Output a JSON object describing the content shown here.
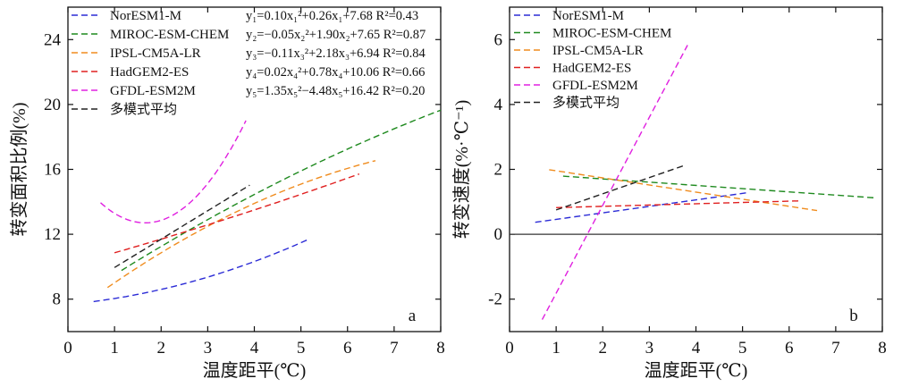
{
  "chart_data": [
    {
      "type": "line",
      "panel_label": "a",
      "xlabel": "温度距平(℃)",
      "ylabel": "转变面积比例(%)",
      "xlim": [
        0,
        8
      ],
      "ylim": [
        6,
        26
      ],
      "xticks": [
        "0",
        "1",
        "2",
        "3",
        "4",
        "5",
        "6",
        "7",
        "8"
      ],
      "yticks": [
        "8",
        "12",
        "16",
        "20",
        "24"
      ],
      "legend_position": "top-left",
      "series": [
        {
          "name": "NorESM1-M",
          "color": "#2b2bd6",
          "equation": "y₁=0.10x₁²+0.26x₁+7.68 R²=0.43",
          "coef": [
            0.1,
            0.26,
            7.68
          ],
          "x_range": [
            0.55,
            5.15
          ]
        },
        {
          "name": "MIROC-ESM-CHEM",
          "color": "#1f8a1f",
          "equation": "y₂=−0.05x₂²+1.90x₂+7.65 R²=0.87",
          "coef": [
            -0.05,
            1.9,
            7.65
          ],
          "x_range": [
            1.15,
            8.0
          ]
        },
        {
          "name": "IPSL-CM5A-LR",
          "color": "#f08c1e",
          "equation": "y₃=−0.11x₃²+2.18x₃+6.94 R²=0.84",
          "coef": [
            -0.11,
            2.18,
            6.94
          ],
          "x_range": [
            0.85,
            6.6
          ]
        },
        {
          "name": "HadGEM2-ES",
          "color": "#e02020",
          "equation": "y₄=0.02x₄²+0.78x₄+10.06 R²=0.66",
          "coef": [
            0.02,
            0.78,
            10.06
          ],
          "x_range": [
            1.0,
            6.25
          ]
        },
        {
          "name": "GFDL-ESM2M",
          "color": "#e020e0",
          "equation": "y₅=1.35x₅²−4.48x₅+16.42 R²=0.20",
          "coef": [
            1.35,
            -4.48,
            16.42
          ],
          "x_range": [
            0.7,
            3.82
          ]
        },
        {
          "name": "多模式平均",
          "color": "#222222",
          "equation": "",
          "coef": [
            0,
            1.75,
            8.2
          ],
          "x_range": [
            1.0,
            3.9
          ]
        }
      ]
    },
    {
      "type": "line",
      "panel_label": "b",
      "xlabel": "温度距平(℃)",
      "ylabel": "转变速度(%·℃⁻¹)",
      "xlim": [
        0,
        8
      ],
      "ylim": [
        -3,
        7
      ],
      "xticks": [
        "0",
        "1",
        "2",
        "3",
        "4",
        "5",
        "6",
        "7",
        "8"
      ],
      "yticks": [
        "-2",
        "0",
        "2",
        "4",
        "6"
      ],
      "zero_line": true,
      "legend_position": "top-left",
      "series": [
        {
          "name": "NorESM1-M",
          "color": "#2b2bd6",
          "x": [
            0.55,
            5.15
          ],
          "y": [
            0.37,
            1.29
          ]
        },
        {
          "name": "MIROC-ESM-CHEM",
          "color": "#1f8a1f",
          "x": [
            1.15,
            7.85
          ],
          "y": [
            1.79,
            1.12
          ]
        },
        {
          "name": "IPSL-CM5A-LR",
          "color": "#f08c1e",
          "x": [
            0.85,
            6.6
          ],
          "y": [
            1.99,
            0.73
          ]
        },
        {
          "name": "HadGEM2-ES",
          "color": "#e02020",
          "x": [
            1.0,
            6.25
          ],
          "y": [
            0.82,
            1.03
          ]
        },
        {
          "name": "GFDL-ESM2M",
          "color": "#e020e0",
          "x": [
            0.7,
            3.82
          ],
          "y": [
            -2.63,
            5.83
          ]
        },
        {
          "name": "多模式平均",
          "color": "#222222",
          "x": [
            1.0,
            3.75
          ],
          "y": [
            0.75,
            2.12
          ]
        }
      ]
    }
  ]
}
